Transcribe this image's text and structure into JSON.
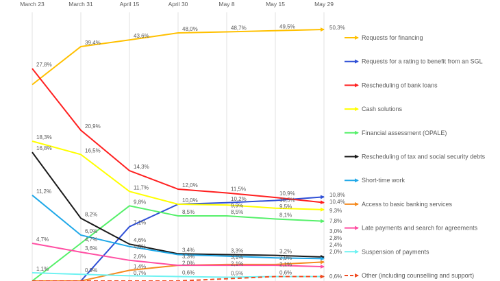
{
  "chart_data": {
    "type": "line",
    "x": [
      "March 23",
      "March 31",
      "April 15",
      "April 30",
      "May 8",
      "May 15",
      "May 29"
    ],
    "ylim": [
      0,
      51
    ],
    "grid": "vertical",
    "legend_placement": "right",
    "series": [
      {
        "name": "Requests for financing",
        "color": "#FFC000",
        "dashed": false,
        "values": [
          26,
          39.4,
          43.6,
          48.0,
          48.7,
          49.5,
          50.3
        ],
        "labels": [
          null,
          "39,4%",
          "43,6%",
          "48,0%",
          "48,7%",
          "49,5%",
          "50,3%"
        ]
      },
      {
        "name": "Requests for a rating to benefit from an SGL",
        "color": "#2E4FD6",
        "dashed": false,
        "values": [
          0,
          0,
          7.1,
          10.0,
          10.2,
          10.5,
          10.8
        ],
        "labels": [
          null,
          null,
          "7,1%",
          "10,0%",
          "10,2%",
          "10,5%",
          "10,8%"
        ]
      },
      {
        "name": "Rescheduling of bank loans",
        "color": "#FF2020",
        "dashed": false,
        "values": [
          27.8,
          20.9,
          14.3,
          12.0,
          11.5,
          10.9,
          10.4
        ],
        "labels": [
          "27,8%",
          "20,9%",
          "14,3%",
          "12,0%",
          "11,5%",
          "10,9%",
          "10,4%"
        ]
      },
      {
        "name": "Cash solutions",
        "color": "#FFFF00",
        "dashed": false,
        "values": [
          18.3,
          16.5,
          11.7,
          10.0,
          9.9,
          9.5,
          9.3
        ],
        "labels": [
          "18,3%",
          "16,5%",
          "11,7%",
          null,
          "9,9%",
          "9,5%",
          "9,3%"
        ]
      },
      {
        "name": "Financial assessment (OPALE)",
        "color": "#55F06A",
        "dashed": false,
        "values": [
          0,
          4.7,
          9.8,
          8.5,
          8.5,
          8.1,
          7.8
        ],
        "labels": [
          null,
          "4,7%",
          "9,8%",
          "8,5%",
          "8,5%",
          "8,1%",
          "7,8%"
        ]
      },
      {
        "name": "Rescheduling of tax and social security debts",
        "color": "#1A1A1A",
        "dashed": false,
        "values": [
          16.8,
          8.2,
          4.6,
          3.4,
          3.3,
          3.2,
          3.0
        ],
        "labels": [
          "16,8%",
          "8,2%",
          "4,6%",
          "3,4%",
          "3,3%",
          "3,2%",
          "3,0%"
        ]
      },
      {
        "name": "Short-time work",
        "color": "#1FA8E8",
        "dashed": false,
        "values": [
          11.2,
          6.0,
          4.3,
          3.3,
          3.1,
          2.9,
          2.8
        ],
        "labels": [
          "11,2%",
          "6,0%",
          "4,3%",
          "3,3%",
          "3,1%",
          "2,9%",
          "2,8%"
        ]
      },
      {
        "name": "Access to basic banking services",
        "color": "#F58A1F",
        "dashed": false,
        "values": [
          0,
          0,
          1.4,
          2.0,
          2.1,
          2.1,
          2.4
        ],
        "labels": [
          null,
          null,
          "1,4%",
          "2,0%",
          "2,1%",
          "2,1%",
          "2,4%"
        ]
      },
      {
        "name": "Late payments and search for agreements",
        "color": "#FF4FA3",
        "dashed": false,
        "values": [
          4.7,
          3.6,
          2.6,
          2.0,
          2.0,
          2.0,
          2.0
        ],
        "labels": [
          "4,7%",
          "3,6%",
          "2,6%",
          null,
          null,
          null,
          "2,0%"
        ]
      },
      {
        "name": "Suspension of payments",
        "color": "#6FF2F2",
        "dashed": false,
        "values": [
          1.1,
          0.9,
          0.7,
          0.6,
          0.5,
          0.6,
          0.6
        ],
        "labels": [
          "1,1%",
          "0,9%",
          "0,7%",
          "0,6%",
          "0,5%",
          "0,6%",
          null
        ]
      },
      {
        "name": "Other (including counselling and support)",
        "color": "#F04A20",
        "dashed": true,
        "values": [
          0,
          0,
          0,
          0,
          0.3,
          0.6,
          0.6
        ],
        "labels": [
          null,
          null,
          null,
          null,
          null,
          null,
          "0,6%"
        ]
      }
    ]
  }
}
